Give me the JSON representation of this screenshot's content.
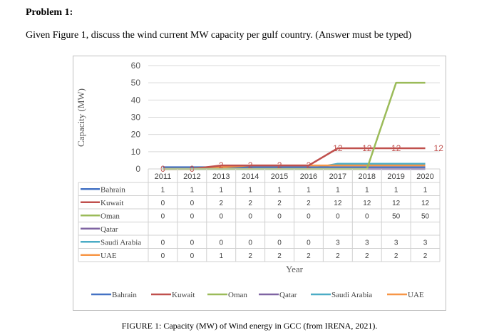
{
  "problem": {
    "title": "Problem 1:",
    "question": "Given Figure 1, discuss the wind current MW capacity per gulf country. (Answer must be typed)"
  },
  "caption": "FIGURE 1: Capacity (MW) of Wind energy in GCC (from IRENA, 2021).",
  "chart_data": {
    "type": "line",
    "ylabel": "Capacity (MW)",
    "xlabel": "Year",
    "ylim": [
      0,
      60
    ],
    "yticks": [
      "0",
      "10",
      "20",
      "30",
      "40",
      "50",
      "60"
    ],
    "categories": [
      "2011",
      "2012",
      "2013",
      "2014",
      "2015",
      "2016",
      "2017",
      "2018",
      "2019",
      "2020"
    ],
    "grid": true,
    "legend": "bottom",
    "series": [
      {
        "name": "Bahrain",
        "color": "#4472c4",
        "values": [
          1,
          1,
          1,
          1,
          1,
          1,
          1,
          1,
          1,
          1
        ],
        "table": [
          "1",
          "1",
          "1",
          "1",
          "1",
          "1",
          "1",
          "1",
          "1",
          "1"
        ]
      },
      {
        "name": "Kuwait",
        "color": "#c0504d",
        "values": [
          0,
          0,
          2,
          2,
          2,
          2,
          12,
          12,
          12,
          12
        ],
        "table": [
          "0",
          "0",
          "2",
          "2",
          "2",
          "2",
          "12",
          "12",
          "12",
          "12"
        ],
        "labels": [
          "0",
          "0",
          "2",
          "2",
          "2",
          "2",
          "12",
          "12",
          "12",
          "12"
        ]
      },
      {
        "name": "Oman",
        "color": "#9bbb59",
        "values": [
          0,
          0,
          0,
          0,
          0,
          0,
          0,
          0,
          50,
          50
        ],
        "table": [
          "0",
          "0",
          "0",
          "0",
          "0",
          "0",
          "0",
          "0",
          "50",
          "50"
        ]
      },
      {
        "name": "Qatar",
        "color": "#7f64a2",
        "values": [
          0,
          0,
          0,
          0,
          0,
          0,
          0,
          0,
          0,
          0
        ],
        "table": [
          "",
          "",
          "",
          "",
          "",
          "",
          "",
          "",
          "",
          ""
        ]
      },
      {
        "name": "Saudi Arabia",
        "color": "#4bacc6",
        "values": [
          0,
          0,
          0,
          0,
          0,
          0,
          3,
          3,
          3,
          3
        ],
        "table": [
          "0",
          "0",
          "0",
          "0",
          "0",
          "0",
          "3",
          "3",
          "3",
          "3"
        ]
      },
      {
        "name": "UAE",
        "color": "#f79646",
        "values": [
          0,
          0,
          1,
          2,
          2,
          2,
          2,
          2,
          2,
          2
        ],
        "table": [
          "0",
          "0",
          "1",
          "2",
          "2",
          "2",
          "2",
          "2",
          "2",
          "2"
        ]
      }
    ]
  }
}
